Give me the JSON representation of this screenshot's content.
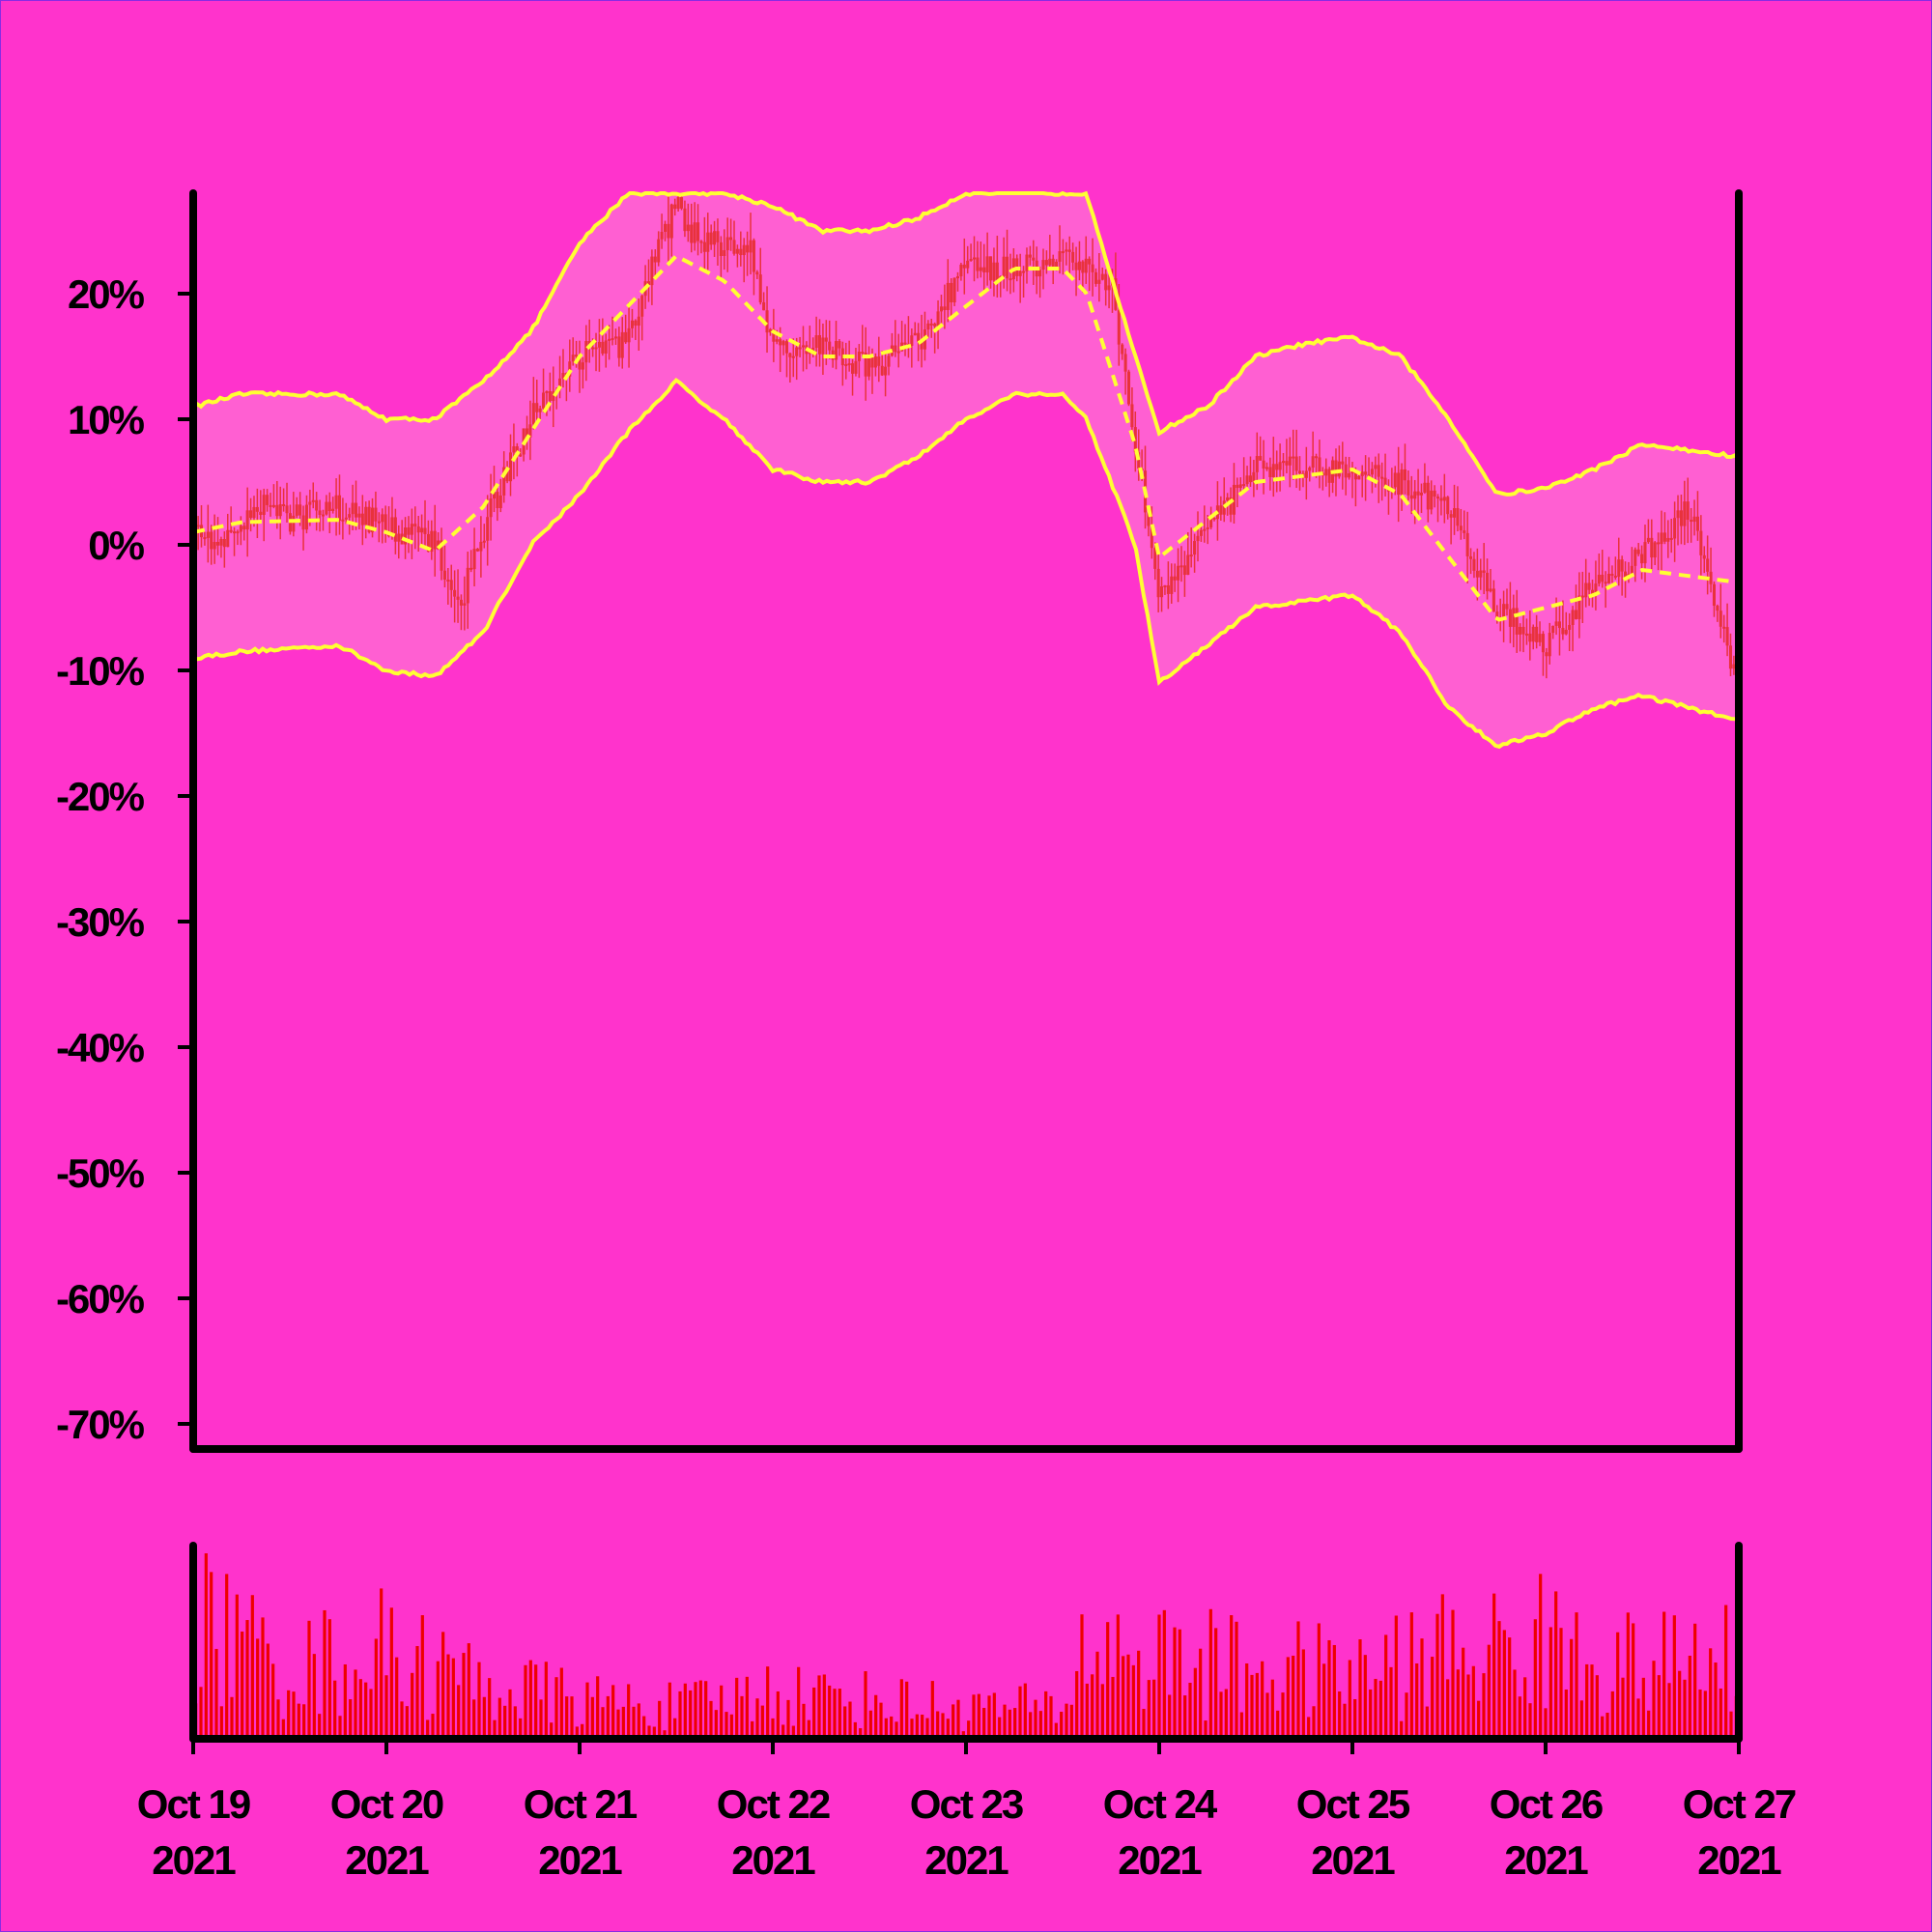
{
  "chart_data": {
    "type": "candlestick",
    "x_start": "2021-10-19",
    "x_end": "2021-10-27",
    "ylim": [
      -72,
      28
    ],
    "y_ticks": [
      {
        "value": 20,
        "label": "20%"
      },
      {
        "value": 10,
        "label": "10%"
      },
      {
        "value": 0,
        "label": "0%"
      },
      {
        "value": -10,
        "label": "-10%"
      },
      {
        "value": -20,
        "label": "-20%"
      },
      {
        "value": -30,
        "label": "-30%"
      },
      {
        "value": -40,
        "label": "-40%"
      },
      {
        "value": -50,
        "label": "-50%"
      },
      {
        "value": -60,
        "label": "-60%"
      },
      {
        "value": -70,
        "label": "-70%"
      }
    ],
    "x_ticks": [
      {
        "date": "2021-10-19",
        "line1": "Oct 19",
        "line2": "2021"
      },
      {
        "date": "2021-10-20",
        "line1": "Oct 20",
        "line2": "2021"
      },
      {
        "date": "2021-10-21",
        "line1": "Oct 21",
        "line2": "2021"
      },
      {
        "date": "2021-10-22",
        "line1": "Oct 22",
        "line2": "2021"
      },
      {
        "date": "2021-10-23",
        "line1": "Oct 23",
        "line2": "2021"
      },
      {
        "date": "2021-10-24",
        "line1": "Oct 24",
        "line2": "2021"
      },
      {
        "date": "2021-10-25",
        "line1": "Oct 25",
        "line2": "2021"
      },
      {
        "date": "2021-10-26",
        "line1": "Oct 26",
        "line2": "2021"
      },
      {
        "date": "2021-10-27",
        "line1": "Oct 27",
        "line2": "2021"
      }
    ],
    "price_path": [
      [
        "2021-10-19 00:00",
        1
      ],
      [
        "2021-10-19 03:00",
        0.5
      ],
      [
        "2021-10-19 06:00",
        1.5
      ],
      [
        "2021-10-19 09:00",
        4
      ],
      [
        "2021-10-19 12:00",
        2
      ],
      [
        "2021-10-19 18:00",
        3
      ],
      [
        "2021-10-20 00:00",
        1.5
      ],
      [
        "2021-10-20 06:00",
        0
      ],
      [
        "2021-10-20 09:00",
        -5
      ],
      [
        "2021-10-20 12:00",
        1
      ],
      [
        "2021-10-20 15:00",
        6
      ],
      [
        "2021-10-20 18:00",
        10
      ],
      [
        "2021-10-21 00:00",
        15
      ],
      [
        "2021-10-21 06:00",
        16
      ],
      [
        "2021-10-21 09:00",
        22
      ],
      [
        "2021-10-21 12:00",
        27
      ],
      [
        "2021-10-21 15:00",
        24
      ],
      [
        "2021-10-21 21:00",
        24
      ],
      [
        "2021-10-22 00:00",
        16
      ],
      [
        "2021-10-22 06:00",
        16
      ],
      [
        "2021-10-22 12:00",
        14
      ],
      [
        "2021-10-22 18:00",
        16
      ],
      [
        "2021-10-23 00:00",
        22
      ],
      [
        "2021-10-23 06:00",
        22
      ],
      [
        "2021-10-23 12:00",
        23
      ],
      [
        "2021-10-23 15:00",
        22
      ],
      [
        "2021-10-23 18:00",
        21
      ],
      [
        "2021-10-24 00:00",
        -4
      ],
      [
        "2021-10-24 06:00",
        1
      ],
      [
        "2021-10-24 12:00",
        6
      ],
      [
        "2021-10-24 18:00",
        6
      ],
      [
        "2021-10-25 00:00",
        6
      ],
      [
        "2021-10-25 06:00",
        5
      ],
      [
        "2021-10-25 12:00",
        3
      ],
      [
        "2021-10-25 18:00",
        -5
      ],
      [
        "2021-10-26 00:00",
        -8
      ],
      [
        "2021-10-26 06:00",
        -3
      ],
      [
        "2021-10-26 12:00",
        -1
      ],
      [
        "2021-10-26 18:00",
        3
      ],
      [
        "2021-10-27 00:00",
        -12
      ]
    ],
    "bollinger": {
      "middle": [
        [
          "2021-10-19 00:00",
          1
        ],
        [
          "2021-10-19 06:00",
          1.8
        ],
        [
          "2021-10-19 18:00",
          2
        ],
        [
          "2021-10-20 00:00",
          1
        ],
        [
          "2021-10-20 06:00",
          -0.5
        ],
        [
          "2021-10-20 12:00",
          3
        ],
        [
          "2021-10-20 18:00",
          9
        ],
        [
          "2021-10-21 00:00",
          15
        ],
        [
          "2021-10-21 06:00",
          19
        ],
        [
          "2021-10-21 12:00",
          23
        ],
        [
          "2021-10-21 18:00",
          21
        ],
        [
          "2021-10-22 00:00",
          17
        ],
        [
          "2021-10-22 06:00",
          15
        ],
        [
          "2021-10-22 12:00",
          15
        ],
        [
          "2021-10-22 18:00",
          16
        ],
        [
          "2021-10-23 00:00",
          19
        ],
        [
          "2021-10-23 06:00",
          22
        ],
        [
          "2021-10-23 12:00",
          22
        ],
        [
          "2021-10-23 15:00",
          20
        ],
        [
          "2021-10-23 21:00",
          8
        ],
        [
          "2021-10-24 00:00",
          -1
        ],
        [
          "2021-10-24 06:00",
          2
        ],
        [
          "2021-10-24 12:00",
          5
        ],
        [
          "2021-10-24 18:00",
          5.5
        ],
        [
          "2021-10-25 00:00",
          6
        ],
        [
          "2021-10-25 06:00",
          4
        ],
        [
          "2021-10-25 12:00",
          -1
        ],
        [
          "2021-10-25 18:00",
          -6
        ],
        [
          "2021-10-26 00:00",
          -5
        ],
        [
          "2021-10-26 06:00",
          -4
        ],
        [
          "2021-10-26 12:00",
          -2
        ],
        [
          "2021-10-27 00:00",
          -3
        ]
      ],
      "upper": [
        [
          "2021-10-19 00:00",
          11
        ],
        [
          "2021-10-19 06:00",
          12
        ],
        [
          "2021-10-19 18:00",
          12
        ],
        [
          "2021-10-20 00:00",
          10
        ],
        [
          "2021-10-20 06:00",
          10
        ],
        [
          "2021-10-20 12:00",
          13
        ],
        [
          "2021-10-20 18:00",
          17
        ],
        [
          "2021-10-21 00:00",
          24
        ],
        [
          "2021-10-21 06:00",
          28
        ],
        [
          "2021-10-21 12:00",
          28
        ],
        [
          "2021-10-21 18:00",
          28
        ],
        [
          "2021-10-22 00:00",
          27
        ],
        [
          "2021-10-22 06:00",
          25
        ],
        [
          "2021-10-22 12:00",
          25
        ],
        [
          "2021-10-22 18:00",
          26
        ],
        [
          "2021-10-23 00:00",
          28
        ],
        [
          "2021-10-23 06:00",
          28
        ],
        [
          "2021-10-23 12:00",
          28
        ],
        [
          "2021-10-23 15:00",
          28
        ],
        [
          "2021-10-23 21:00",
          15
        ],
        [
          "2021-10-24 00:00",
          9
        ],
        [
          "2021-10-24 06:00",
          11
        ],
        [
          "2021-10-24 12:00",
          15
        ],
        [
          "2021-10-24 18:00",
          16
        ],
        [
          "2021-10-25 00:00",
          16.5
        ],
        [
          "2021-10-25 06:00",
          15
        ],
        [
          "2021-10-25 12:00",
          10
        ],
        [
          "2021-10-25 18:00",
          4
        ],
        [
          "2021-10-26 00:00",
          4.5
        ],
        [
          "2021-10-26 06:00",
          6
        ],
        [
          "2021-10-26 12:00",
          8
        ],
        [
          "2021-10-27 00:00",
          7
        ]
      ],
      "lower": [
        [
          "2021-10-19 00:00",
          -9
        ],
        [
          "2021-10-19 06:00",
          -8.5
        ],
        [
          "2021-10-19 18:00",
          -8
        ],
        [
          "2021-10-20 00:00",
          -10
        ],
        [
          "2021-10-20 06:00",
          -10.5
        ],
        [
          "2021-10-20 12:00",
          -7
        ],
        [
          "2021-10-20 18:00",
          0
        ],
        [
          "2021-10-21 00:00",
          4
        ],
        [
          "2021-10-21 06:00",
          9
        ],
        [
          "2021-10-21 12:00",
          13
        ],
        [
          "2021-10-21 18:00",
          10
        ],
        [
          "2021-10-22 00:00",
          6
        ],
        [
          "2021-10-22 06:00",
          5
        ],
        [
          "2021-10-22 12:00",
          5
        ],
        [
          "2021-10-22 18:00",
          7
        ],
        [
          "2021-10-23 00:00",
          10
        ],
        [
          "2021-10-23 06:00",
          12
        ],
        [
          "2021-10-23 12:00",
          12
        ],
        [
          "2021-10-23 15:00",
          10
        ],
        [
          "2021-10-23 21:00",
          0
        ],
        [
          "2021-10-24 00:00",
          -11
        ],
        [
          "2021-10-24 06:00",
          -8
        ],
        [
          "2021-10-24 12:00",
          -5
        ],
        [
          "2021-10-24 18:00",
          -4.5
        ],
        [
          "2021-10-25 00:00",
          -4
        ],
        [
          "2021-10-25 06:00",
          -7
        ],
        [
          "2021-10-25 12:00",
          -13
        ],
        [
          "2021-10-25 18:00",
          -16
        ],
        [
          "2021-10-26 00:00",
          -15
        ],
        [
          "2021-10-26 06:00",
          -13
        ],
        [
          "2021-10-26 12:00",
          -12
        ],
        [
          "2021-10-27 00:00",
          -14
        ]
      ]
    },
    "volume_profile": [
      [
        "2021-10-19 00:00",
        0.75
      ],
      [
        "2021-10-19 12:00",
        0.45
      ],
      [
        "2021-10-20 00:00",
        0.55
      ],
      [
        "2021-10-20 12:00",
        0.35
      ],
      [
        "2021-10-21 00:00",
        0.25
      ],
      [
        "2021-10-21 12:00",
        0.2
      ],
      [
        "2021-10-22 00:00",
        0.3
      ],
      [
        "2021-10-22 12:00",
        0.25
      ],
      [
        "2021-10-23 00:00",
        0.2
      ],
      [
        "2021-10-23 12:00",
        0.2
      ],
      [
        "2021-10-23 15:00",
        0.6
      ],
      [
        "2021-10-24 00:00",
        0.5
      ],
      [
        "2021-10-24 12:00",
        0.45
      ],
      [
        "2021-10-25 00:00",
        0.4
      ],
      [
        "2021-10-25 12:00",
        0.55
      ],
      [
        "2021-10-26 00:00",
        0.6
      ],
      [
        "2021-10-26 12:00",
        0.45
      ],
      [
        "2021-10-27 00:00",
        0.5
      ]
    ],
    "colors": {
      "background": "#ff33cc",
      "band_fill": "#ff5fd2",
      "band_line": "#ffff33",
      "candle": "#e8323c",
      "volume": "#ee0000",
      "axis": "#000000"
    }
  }
}
